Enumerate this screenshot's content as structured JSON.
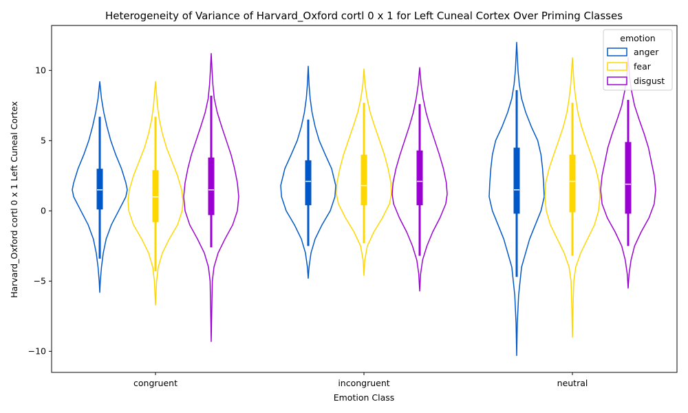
{
  "chart_data": {
    "type": "violin",
    "title": "Heterogeneity of Variance of Harvard_Oxford cortl 0 x 1 for Left Cuneal Cortex Over Priming Classes",
    "xlabel": "Emotion Class",
    "ylabel": "Harvard_Oxford cortl 0 x 1 Left Cuneal Cortex",
    "categories": [
      "congruent",
      "incongruent",
      "neutral"
    ],
    "ylim": [
      -11.5,
      13.2
    ],
    "yticks": [
      -10,
      -5,
      0,
      5,
      10
    ],
    "ytick_labels": [
      "−10",
      "−5",
      "0",
      "5",
      "10"
    ],
    "grid": false,
    "legend": {
      "title": "emotion",
      "position": "top-right",
      "entries": [
        "anger",
        "fear",
        "disgust"
      ]
    },
    "series": [
      {
        "name": "anger",
        "color": "#0057C8",
        "stats": [
          {
            "category": "congruent",
            "min": -5.8,
            "max": 9.2,
            "whisker_low": -3.4,
            "whisker_high": 6.7,
            "q1": 0.1,
            "median": 1.5,
            "q3": 3.0,
            "density": [
              [
                -5.8,
                0
              ],
              [
                -5.0,
                0.02
              ],
              [
                -4.0,
                0.06
              ],
              [
                -3.0,
                0.12
              ],
              [
                -2.0,
                0.22
              ],
              [
                -1.0,
                0.4
              ],
              [
                0,
                0.65
              ],
              [
                1.0,
                0.9
              ],
              [
                1.5,
                0.95
              ],
              [
                2.0,
                0.9
              ],
              [
                3.0,
                0.75
              ],
              [
                4.0,
                0.55
              ],
              [
                5.0,
                0.38
              ],
              [
                6.0,
                0.25
              ],
              [
                7.0,
                0.14
              ],
              [
                8.0,
                0.06
              ],
              [
                9.2,
                0
              ]
            ]
          },
          {
            "category": "incongruent",
            "min": -4.8,
            "max": 10.3,
            "whisker_low": -2.5,
            "whisker_high": 6.5,
            "q1": 0.4,
            "median": 2.1,
            "q3": 3.6,
            "density": [
              [
                -4.8,
                0
              ],
              [
                -4.0,
                0.03
              ],
              [
                -3.0,
                0.1
              ],
              [
                -2.0,
                0.25
              ],
              [
                -1.0,
                0.5
              ],
              [
                0,
                0.8
              ],
              [
                1.0,
                0.97
              ],
              [
                1.8,
                1.0
              ],
              [
                3.0,
                0.85
              ],
              [
                4.0,
                0.62
              ],
              [
                5.0,
                0.4
              ],
              [
                6.0,
                0.25
              ],
              [
                7.0,
                0.14
              ],
              [
                8.0,
                0.07
              ],
              [
                9.0,
                0.03
              ],
              [
                10.3,
                0
              ]
            ]
          },
          {
            "category": "neutral",
            "min": -10.3,
            "max": 12.0,
            "whisker_low": -4.7,
            "whisker_high": 8.6,
            "q1": -0.2,
            "median": 1.5,
            "q3": 4.5,
            "density": [
              [
                -10.3,
                0
              ],
              [
                -8.0,
                0.02
              ],
              [
                -6.0,
                0.06
              ],
              [
                -4.0,
                0.15
              ],
              [
                -2.0,
                0.4
              ],
              [
                0,
                0.75
              ],
              [
                1.0,
                0.85
              ],
              [
                2.0,
                0.83
              ],
              [
                3.0,
                0.8
              ],
              [
                4.0,
                0.75
              ],
              [
                5.0,
                0.65
              ],
              [
                6.0,
                0.45
              ],
              [
                7.0,
                0.28
              ],
              [
                8.0,
                0.15
              ],
              [
                9.0,
                0.08
              ],
              [
                10.0,
                0.04
              ],
              [
                12.0,
                0
              ]
            ]
          }
        ]
      },
      {
        "name": "fear",
        "color": "#FFD700",
        "stats": [
          {
            "category": "congruent",
            "min": -6.7,
            "max": 9.2,
            "whisker_low": -4.3,
            "whisker_high": 6.7,
            "q1": -0.8,
            "median": 1.0,
            "q3": 2.9,
            "density": [
              [
                -6.7,
                0
              ],
              [
                -5.0,
                0.04
              ],
              [
                -4.0,
                0.1
              ],
              [
                -3.0,
                0.25
              ],
              [
                -2.0,
                0.5
              ],
              [
                -1.0,
                0.8
              ],
              [
                0,
                0.97
              ],
              [
                0.7,
                1.0
              ],
              [
                1.5,
                0.95
              ],
              [
                2.5,
                0.8
              ],
              [
                3.5,
                0.6
              ],
              [
                4.5,
                0.4
              ],
              [
                5.5,
                0.25
              ],
              [
                6.5,
                0.14
              ],
              [
                7.5,
                0.07
              ],
              [
                8.5,
                0.03
              ],
              [
                9.2,
                0
              ]
            ]
          },
          {
            "category": "incongruent",
            "min": -4.6,
            "max": 10.1,
            "whisker_low": -2.3,
            "whisker_high": 7.7,
            "q1": 0.4,
            "median": 1.8,
            "q3": 4.0,
            "density": [
              [
                -4.6,
                0
              ],
              [
                -3.5,
                0.03
              ],
              [
                -2.5,
                0.12
              ],
              [
                -1.5,
                0.35
              ],
              [
                -0.5,
                0.65
              ],
              [
                0.5,
                0.9
              ],
              [
                1.2,
                0.97
              ],
              [
                2.0,
                0.95
              ],
              [
                3.0,
                0.85
              ],
              [
                4.0,
                0.72
              ],
              [
                5.0,
                0.55
              ],
              [
                6.0,
                0.38
              ],
              [
                7.0,
                0.22
              ],
              [
                8.0,
                0.11
              ],
              [
                9.0,
                0.04
              ],
              [
                10.1,
                0
              ]
            ]
          },
          {
            "category": "neutral",
            "min": -9.0,
            "max": 10.9,
            "whisker_low": -3.2,
            "whisker_high": 7.7,
            "q1": -0.1,
            "median": 2.1,
            "q3": 4.0,
            "density": [
              [
                -9.0,
                0
              ],
              [
                -7.0,
                0.02
              ],
              [
                -5.0,
                0.05
              ],
              [
                -4.0,
                0.12
              ],
              [
                -3.0,
                0.3
              ],
              [
                -2.0,
                0.55
              ],
              [
                -1.0,
                0.8
              ],
              [
                0,
                0.95
              ],
              [
                1.0,
                1.0
              ],
              [
                2.0,
                0.97
              ],
              [
                3.0,
                0.85
              ],
              [
                4.0,
                0.68
              ],
              [
                5.0,
                0.5
              ],
              [
                6.0,
                0.33
              ],
              [
                7.0,
                0.2
              ],
              [
                8.0,
                0.12
              ],
              [
                9.0,
                0.06
              ],
              [
                10.9,
                0
              ]
            ]
          }
        ]
      },
      {
        "name": "disgust",
        "color": "#9B00D3",
        "stats": [
          {
            "category": "congruent",
            "min": -9.3,
            "max": 11.2,
            "whisker_low": -2.6,
            "whisker_high": 8.2,
            "q1": -0.3,
            "median": 1.5,
            "q3": 3.8,
            "density": [
              [
                -9.3,
                0
              ],
              [
                -7.0,
                0.02
              ],
              [
                -5.0,
                0.04
              ],
              [
                -4.0,
                0.1
              ],
              [
                -3.0,
                0.25
              ],
              [
                -2.0,
                0.5
              ],
              [
                -1.0,
                0.78
              ],
              [
                0,
                0.95
              ],
              [
                1.0,
                1.0
              ],
              [
                2.0,
                0.95
              ],
              [
                3.0,
                0.85
              ],
              [
                4.0,
                0.72
              ],
              [
                5.0,
                0.55
              ],
              [
                6.0,
                0.38
              ],
              [
                7.0,
                0.22
              ],
              [
                8.0,
                0.11
              ],
              [
                9.0,
                0.06
              ],
              [
                10.0,
                0.03
              ],
              [
                11.2,
                0
              ]
            ]
          },
          {
            "category": "incongruent",
            "min": -5.7,
            "max": 10.2,
            "whisker_low": -3.2,
            "whisker_high": 7.6,
            "q1": 0.4,
            "median": 2.1,
            "q3": 4.3,
            "density": [
              [
                -5.7,
                0
              ],
              [
                -4.5,
                0.03
              ],
              [
                -3.5,
                0.1
              ],
              [
                -2.5,
                0.25
              ],
              [
                -1.5,
                0.45
              ],
              [
                -0.5,
                0.7
              ],
              [
                0.5,
                0.9
              ],
              [
                1.2,
                0.95
              ],
              [
                2.0,
                0.92
              ],
              [
                3.0,
                0.82
              ],
              [
                4.0,
                0.68
              ],
              [
                5.0,
                0.52
              ],
              [
                6.0,
                0.36
              ],
              [
                7.0,
                0.22
              ],
              [
                8.0,
                0.12
              ],
              [
                9.0,
                0.05
              ],
              [
                10.2,
                0
              ]
            ]
          },
          {
            "category": "neutral",
            "min": -5.5,
            "max": 10.9,
            "whisker_low": -2.5,
            "whisker_high": 7.9,
            "q1": -0.2,
            "median": 1.9,
            "q3": 4.9,
            "density": [
              [
                -5.5,
                0
              ],
              [
                -4.5,
                0.03
              ],
              [
                -3.5,
                0.1
              ],
              [
                -2.5,
                0.22
              ],
              [
                -1.5,
                0.45
              ],
              [
                -0.5,
                0.72
              ],
              [
                0.5,
                0.9
              ],
              [
                1.5,
                0.95
              ],
              [
                2.5,
                0.9
              ],
              [
                3.5,
                0.8
              ],
              [
                4.5,
                0.7
              ],
              [
                5.5,
                0.55
              ],
              [
                6.5,
                0.38
              ],
              [
                7.5,
                0.22
              ],
              [
                8.5,
                0.12
              ],
              [
                9.5,
                0.05
              ],
              [
                10.9,
                0
              ]
            ]
          }
        ]
      }
    ]
  }
}
